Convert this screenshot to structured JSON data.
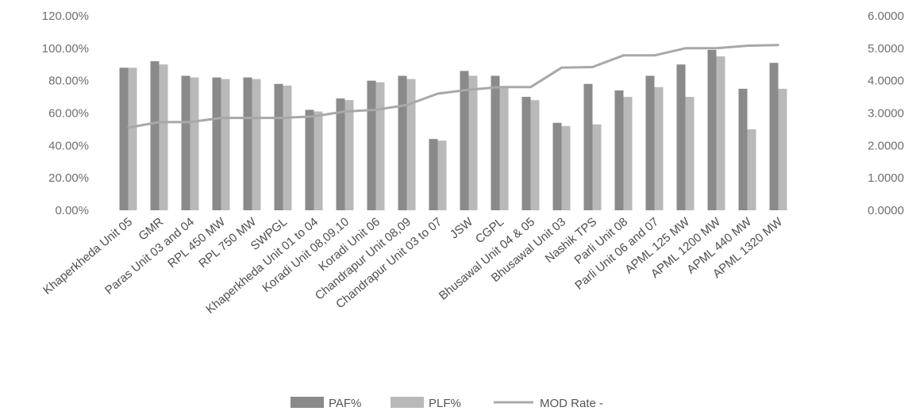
{
  "colors": {
    "paf": "#8a8a8a",
    "plf": "#b9b9b9",
    "mod": "#a8a8a8",
    "text": "#6f6f6f"
  },
  "chart_data": {
    "type": "bar",
    "title": "",
    "xlabel": "",
    "ylabel": "",
    "categories": [
      "Khaperkheda Unit 05",
      "GMR",
      "Paras Unit 03 and 04",
      "RPL 450 MW",
      "RPL 750 MW",
      "SWPGL",
      "Khaperkheda Unit 01 to 04",
      "Koradi Unit 08,09,10",
      "Koradi Unit 06",
      "Chandrapur Unit 08,09",
      "Chandrapur Unit 03 to 07",
      "JSW",
      "CGPL",
      "Bhusawal Unit 04 & 05",
      "Bhusawal Unit 03",
      "Nashik TPS",
      "Parli Unit 08",
      "Parli Unit 06 and 07",
      "APML 125 MW",
      "APML 1200 MW",
      "APML 440 MW",
      "APML 1320 MW"
    ],
    "series": [
      {
        "name": "PAF%",
        "axis": "left",
        "kind": "bar",
        "values": [
          88,
          92,
          83,
          82,
          82,
          78,
          62,
          69,
          80,
          83,
          44,
          86,
          83,
          70,
          54,
          78,
          74,
          83,
          90,
          99,
          75,
          91
        ]
      },
      {
        "name": "PLF%",
        "axis": "left",
        "kind": "bar",
        "values": [
          88,
          90,
          82,
          81,
          81,
          77,
          61,
          68,
          79,
          81,
          43,
          83,
          76,
          68,
          52,
          53,
          70,
          76,
          70,
          95,
          50,
          75
        ]
      },
      {
        "name": "MOD Rate -",
        "axis": "right",
        "kind": "line",
        "values": [
          2.55,
          2.72,
          2.72,
          2.85,
          2.85,
          2.85,
          2.9,
          3.05,
          3.1,
          3.25,
          3.6,
          3.72,
          3.8,
          3.8,
          4.4,
          4.42,
          4.78,
          4.78,
          5.0,
          5.0,
          5.08,
          5.1
        ]
      }
    ],
    "ylim": [
      0,
      120
    ],
    "y2lim": [
      0,
      6
    ],
    "y_ticks": [
      "0.00%",
      "20.00%",
      "40.00%",
      "60.00%",
      "80.00%",
      "100.00%",
      "120.00%"
    ],
    "y2_ticks": [
      "0.0000",
      "1.0000",
      "2.0000",
      "3.0000",
      "4.0000",
      "5.0000",
      "6.0000"
    ],
    "grid": false,
    "legend": {
      "position": "bottom",
      "entries": [
        "PAF%",
        "PLF%",
        "MOD Rate -"
      ]
    }
  }
}
